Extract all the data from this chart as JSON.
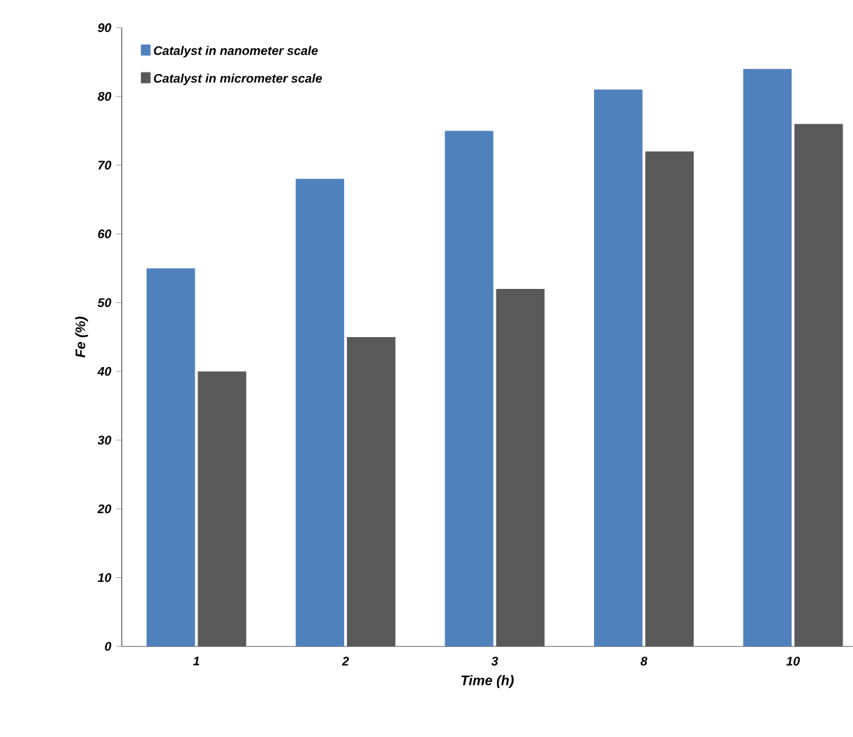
{
  "chart_data": {
    "type": "bar",
    "xlabel": "Time (h)",
    "ylabel": "Fe (%)",
    "categories": [
      "1",
      "2",
      "3",
      "8",
      "10"
    ],
    "series": [
      {
        "name": "Catalyst in nanometer scale",
        "color": "#4f81bd",
        "values": [
          55,
          68,
          75,
          81,
          84
        ]
      },
      {
        "name": "Catalyst in micrometer scale",
        "color": "#595959",
        "values": [
          40,
          45,
          52,
          72,
          76
        ]
      }
    ],
    "ylim": [
      0,
      90
    ],
    "yticks": [
      0,
      10,
      20,
      30,
      40,
      50,
      60,
      70,
      80,
      90
    ],
    "legend": "top left",
    "grid": false
  }
}
